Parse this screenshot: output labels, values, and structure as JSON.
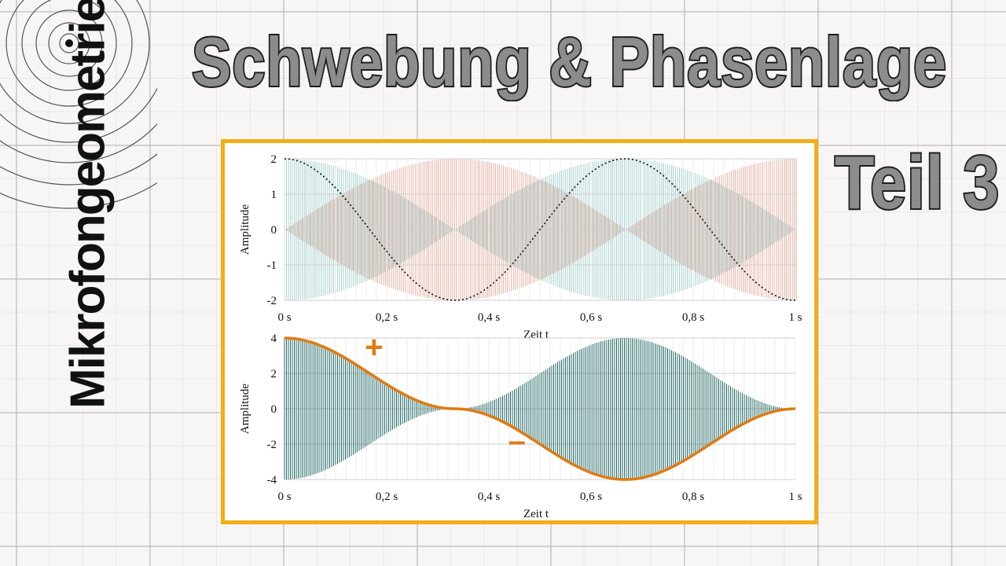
{
  "brand": {
    "name": "Mikrofongeometrie",
    "logo_icon": "concentric-circles-icon"
  },
  "title": "Schwebung & Phasenlage",
  "subtitle": "Teil 3",
  "colors": {
    "frame": "#f2ad17",
    "teal": "#3e9a96",
    "teal_light": "#cfe9e6",
    "red_light": "#e6c2b4",
    "red_line": "#cf6f5a",
    "orange": "#e07a12",
    "dark_teal": "#0d5a55"
  },
  "chart_data": [
    {
      "type": "line",
      "description_series": [
        {
          "values_fn": "cos(2*pi*f1*t)+cos(2*pi*f2*t)",
          "color": "teal"
        },
        {
          "values_fn": "cos(2*pi*f1*t)-cos(2*pi*f2*t)",
          "color": "red"
        },
        {
          "values_fn": "2*cos(2*pi*1.5*t)",
          "color": "black",
          "style": "dotted"
        }
      ],
      "envelope_beat_hz": 1.5,
      "carrier_cycles": 260,
      "xlabel": "Zeit t",
      "ylabel": "Amplitude",
      "xlim": [
        0,
        1
      ],
      "ylim": [
        -2,
        2
      ],
      "x_ticks": [
        "0 s",
        "0,2 s",
        "0,4 s",
        "0,6 s",
        "0,8 s",
        "1 s"
      ],
      "y_ticks": [
        "2",
        "1",
        "0",
        "-1",
        "-2"
      ],
      "grid": true
    },
    {
      "type": "line",
      "series": [
        {
          "values_fn": "(2+2*cos(2*pi*1.5*t))*... carrier",
          "color": "dark_teal"
        },
        {
          "values_fn": "4*cos(2*pi*1.5*t)^2 * sign",
          "color": "orange"
        }
      ],
      "envelope_peaks": [
        [
          0,
          4
        ],
        [
          0.333,
          0
        ],
        [
          0.667,
          -4
        ],
        [
          1,
          0
        ]
      ],
      "xlabel": "Zeit t",
      "ylabel": "Amplitude",
      "xlim": [
        0,
        1
      ],
      "ylim": [
        -4,
        4
      ],
      "x_ticks": [
        "0 s",
        "0,2 s",
        "0,4 s",
        "0,6 s",
        "0,8 s",
        "1 s"
      ],
      "y_ticks": [
        "4",
        "2",
        "0",
        "-2",
        "-4"
      ],
      "grid": true,
      "annotations": [
        "+",
        "–"
      ]
    }
  ]
}
